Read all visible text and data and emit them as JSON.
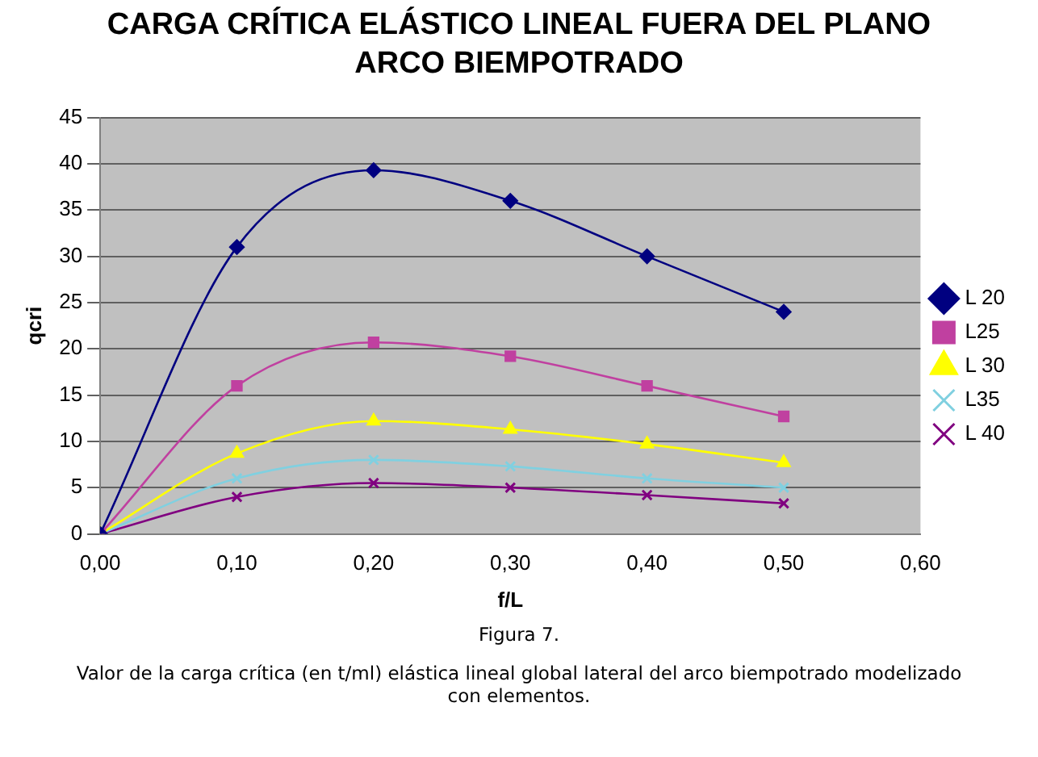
{
  "chart_data": {
    "type": "line",
    "title": "CARGA CRÍTICA ELÁSTICO LINEAL FUERA DEL PLANO ARCO BIEMPOTRADO",
    "xlabel": "f/L",
    "ylabel": "qcri",
    "x": [
      0,
      0.1,
      0.2,
      0.3,
      0.4,
      0.5
    ],
    "xlim": [
      0,
      0.6
    ],
    "xticks": [
      {
        "value": 0,
        "label": "0,00"
      },
      {
        "value": 0.1,
        "label": "0,10"
      },
      {
        "value": 0.2,
        "label": "0,20"
      },
      {
        "value": 0.3,
        "label": "0,30"
      },
      {
        "value": 0.4,
        "label": "0,40"
      },
      {
        "value": 0.5,
        "label": "0,50"
      },
      {
        "value": 0.6,
        "label": "0,60"
      }
    ],
    "ylim": [
      0,
      45
    ],
    "yticks": [
      0,
      5,
      10,
      15,
      20,
      25,
      30,
      35,
      40,
      45
    ],
    "grid": "y",
    "legend": "right",
    "line_style": "solid",
    "series": [
      {
        "name": "L 20",
        "color": "#000080",
        "marker": "diamond",
        "values": [
          0,
          31,
          39.3,
          36,
          30,
          24
        ]
      },
      {
        "name": "L25",
        "color": "#c040a0",
        "marker": "square",
        "values": [
          0,
          16,
          20.7,
          19.2,
          16,
          12.7
        ]
      },
      {
        "name": "L 30",
        "color": "#ffff00",
        "marker": "triangle",
        "values": [
          0,
          8.7,
          12.2,
          11.3,
          9.7,
          7.7
        ]
      },
      {
        "name": "L35",
        "color": "#80d0e0",
        "marker": "cross",
        "values": [
          0,
          6,
          8,
          7.3,
          6,
          5
        ]
      },
      {
        "name": "L 40",
        "color": "#800080",
        "marker": "cross",
        "values": [
          0,
          4,
          5.5,
          5,
          4.2,
          3.3
        ]
      }
    ],
    "annotations": [
      "Figura 7.",
      "Valor de la carga crítica (en t/ml) elástica lineal global lateral del arco biempotrado modelizado con elementos."
    ]
  }
}
